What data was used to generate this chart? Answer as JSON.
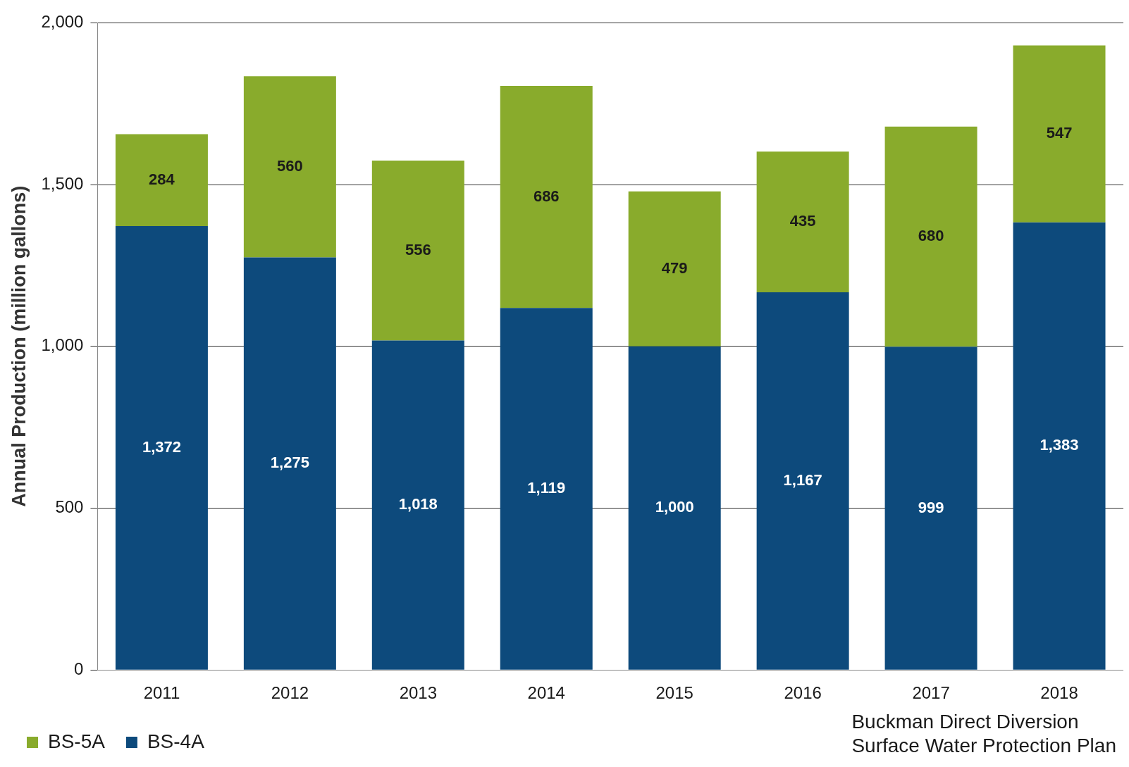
{
  "chart_data": {
    "type": "bar",
    "stacked": true,
    "ylabel": "Annual Production (million gallons)",
    "categories": [
      "2011",
      "2012",
      "2013",
      "2014",
      "2015",
      "2016",
      "2017",
      "2018"
    ],
    "series": [
      {
        "name": "BS-4A",
        "color": "#0d4a7c",
        "values": [
          1372,
          1275,
          1018,
          1119,
          1000,
          1167,
          999,
          1383
        ],
        "value_labels": [
          "1,372",
          "1,275",
          "1,018",
          "1,119",
          "1,000",
          "1,167",
          "999",
          "1,383"
        ]
      },
      {
        "name": "BS-5A",
        "color": "#89ab2c",
        "values": [
          284,
          560,
          556,
          686,
          479,
          435,
          680,
          547
        ],
        "value_labels": [
          "284",
          "560",
          "556",
          "686",
          "479",
          "435",
          "680",
          "547"
        ]
      }
    ],
    "ylim": [
      0,
      2000
    ],
    "yticks": [
      {
        "value": 0,
        "label": "0"
      },
      {
        "value": 500,
        "label": "500"
      },
      {
        "value": 1000,
        "label": "1,000"
      },
      {
        "value": 1500,
        "label": "1,500"
      },
      {
        "value": 2000,
        "label": "2,000"
      }
    ],
    "grid": "y",
    "legend": "bottom left",
    "annotations": [
      "Buckman Direct Diversion",
      "Surface Water Protection Plan"
    ]
  }
}
